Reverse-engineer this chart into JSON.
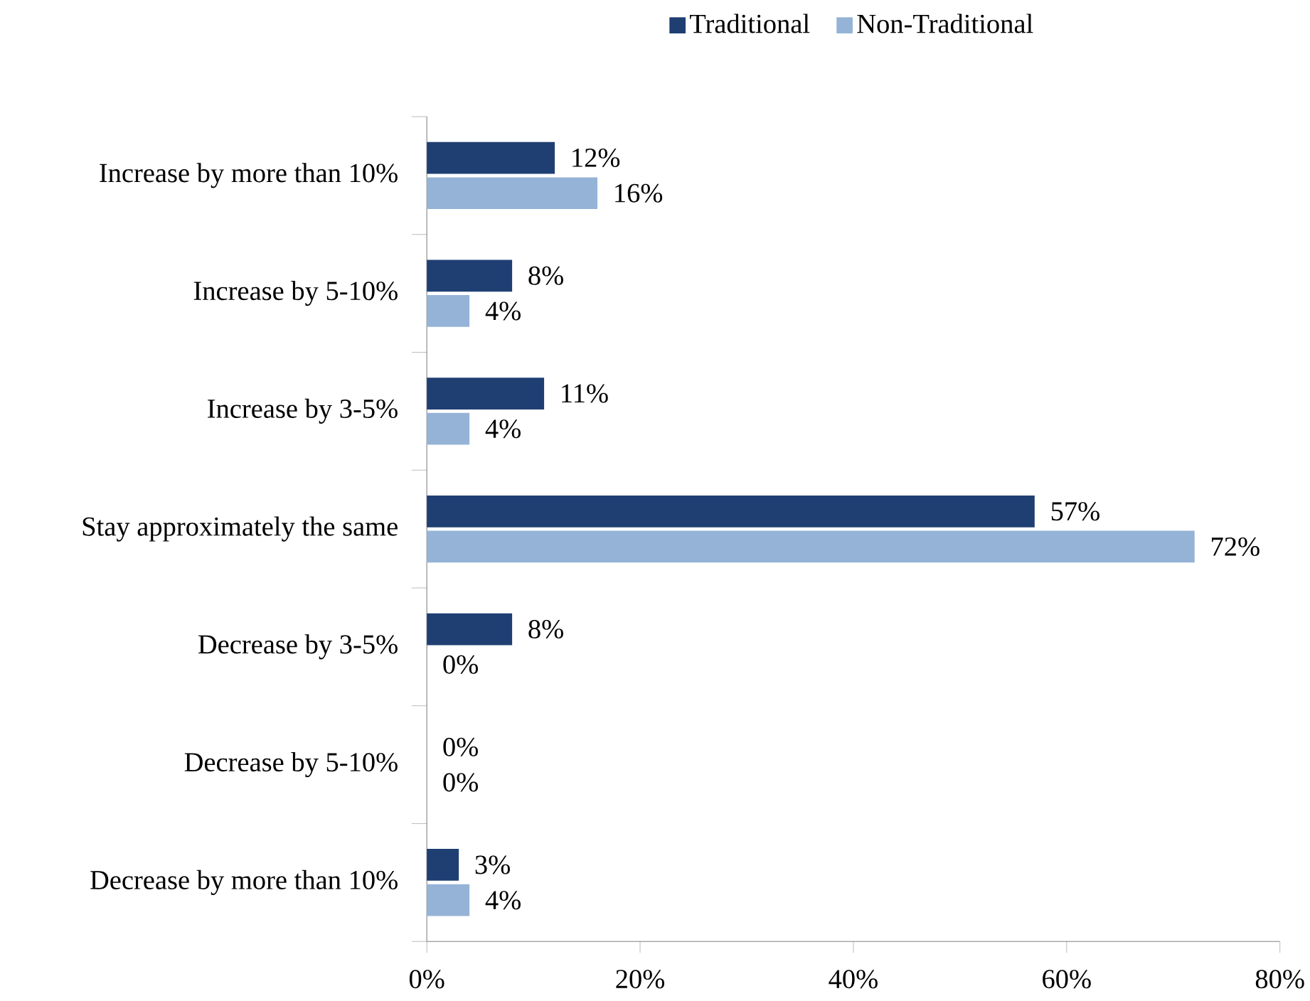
{
  "chart_data": {
    "type": "bar",
    "orientation": "horizontal",
    "legend": "top",
    "categories": [
      "Increase by more than 10%",
      "Increase by 5-10%",
      "Increase by 3-5%",
      "Stay approximately the same",
      "Decrease by 3-5%",
      "Decrease by 5-10%",
      "Decrease by more than 10%"
    ],
    "series": [
      {
        "name": "Traditional",
        "color": "#1f3f73",
        "values": [
          12,
          8,
          11,
          57,
          8,
          0,
          3
        ],
        "value_labels": [
          "12%",
          "8%",
          "11%",
          "57%",
          "8%",
          "0%",
          "3%"
        ]
      },
      {
        "name": "Non-Traditional",
        "color": "#95b3d7",
        "values": [
          16,
          4,
          4,
          72,
          0,
          0,
          4
        ],
        "value_labels": [
          "16%",
          "4%",
          "4%",
          "72%",
          "0%",
          "0%",
          "4%"
        ]
      }
    ],
    "xlim": [
      0,
      80
    ],
    "xticks": [
      {
        "value": 0,
        "label": "0%"
      },
      {
        "value": 20,
        "label": "20%"
      },
      {
        "value": 40,
        "label": "40%"
      },
      {
        "value": 60,
        "label": "60%"
      },
      {
        "value": 80,
        "label": "80%"
      }
    ]
  }
}
